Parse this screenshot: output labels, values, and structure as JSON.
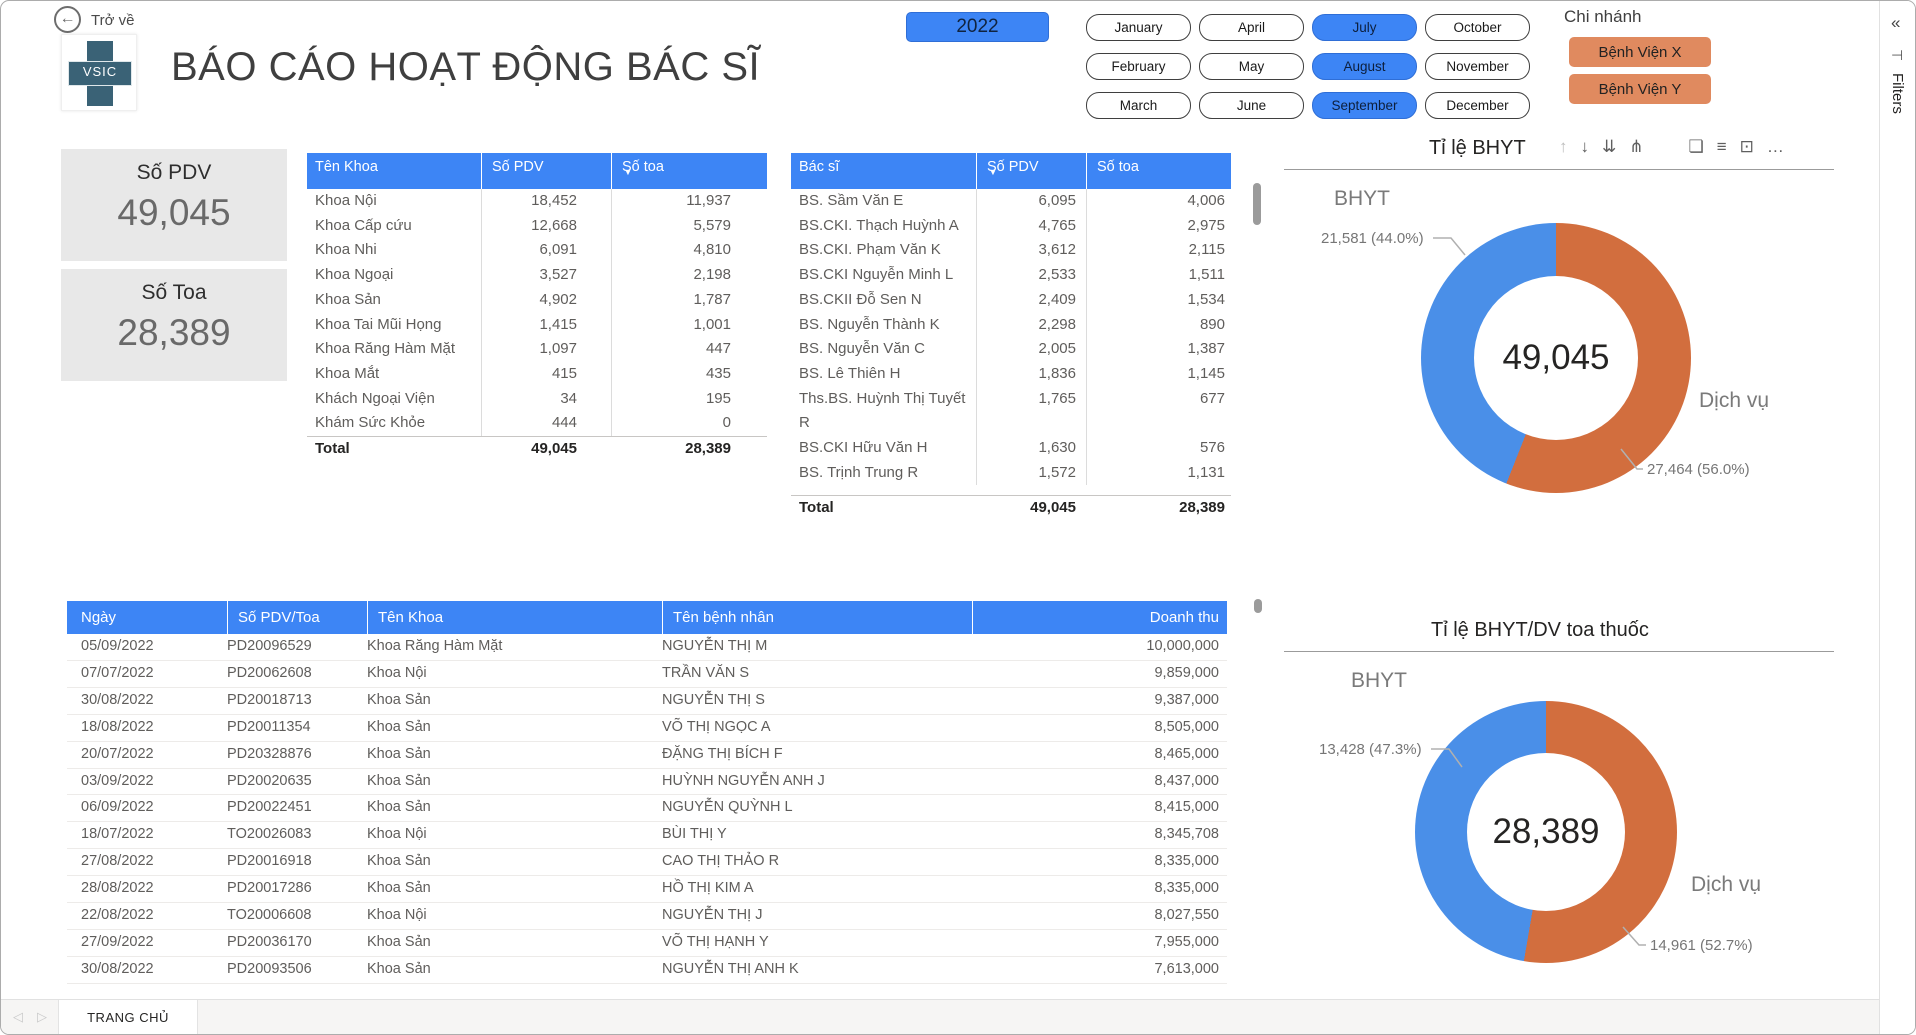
{
  "header": {
    "back_label": "Trở về",
    "logo_text": "VSIC",
    "title": "BÁO CÁO HOẠT ĐỘNG BÁC SĨ",
    "year": "2022",
    "months": [
      {
        "label": "January",
        "selected": false
      },
      {
        "label": "February",
        "selected": false
      },
      {
        "label": "March",
        "selected": false
      },
      {
        "label": "April",
        "selected": false
      },
      {
        "label": "May",
        "selected": false
      },
      {
        "label": "June",
        "selected": false
      },
      {
        "label": "July",
        "selected": true
      },
      {
        "label": "August",
        "selected": true
      },
      {
        "label": "September",
        "selected": true
      },
      {
        "label": "October",
        "selected": false
      },
      {
        "label": "November",
        "selected": false
      },
      {
        "label": "December",
        "selected": false
      }
    ],
    "branch": {
      "label": "Chi nhánh",
      "buttons": [
        "Bệnh Viện X",
        "Bệnh Viện Y"
      ]
    }
  },
  "cards": [
    {
      "label": "Số PDV",
      "value": "49,045"
    },
    {
      "label": "Số Toa",
      "value": "28,389"
    }
  ],
  "dept_table": {
    "columns": [
      "Tên Khoa",
      "Số PDV",
      "Số toa"
    ],
    "sort_column": "Số toa",
    "rows": [
      [
        "Khoa Nội",
        "18,452",
        "11,937"
      ],
      [
        "Khoa Cấp cứu",
        "12,668",
        "5,579"
      ],
      [
        "Khoa Nhi",
        "6,091",
        "4,810"
      ],
      [
        "Khoa Ngoại",
        "3,527",
        "2,198"
      ],
      [
        "Khoa Sản",
        "4,902",
        "1,787"
      ],
      [
        "Khoa Tai Mũi Họng",
        "1,415",
        "1,001"
      ],
      [
        "Khoa Răng Hàm Mặt",
        "1,097",
        "447"
      ],
      [
        "Khoa Mắt",
        "415",
        "435"
      ],
      [
        "Khách Ngoại Viện",
        "34",
        "195"
      ],
      [
        "Khám Sức Khỏe",
        "444",
        "0"
      ]
    ],
    "total": [
      "Total",
      "49,045",
      "28,389"
    ]
  },
  "doctor_table": {
    "columns": [
      "Bác sĩ",
      "Số PDV",
      "Số toa"
    ],
    "sort_column": "Số PDV",
    "rows": [
      [
        "BS. Sầm Văn E",
        "6,095",
        "4,006"
      ],
      [
        "BS.CKI. Thạch Huỳnh A",
        "4,765",
        "2,975"
      ],
      [
        "BS.CKI. Phạm Văn K",
        "3,612",
        "2,115"
      ],
      [
        "BS.CKI Nguyễn Minh L",
        "2,533",
        "1,511"
      ],
      [
        "BS.CKII Đỗ Sen N",
        "2,409",
        "1,534"
      ],
      [
        "BS. Nguyễn Thành K",
        "2,298",
        "890"
      ],
      [
        "BS. Nguyễn Văn C",
        "2,005",
        "1,387"
      ],
      [
        "BS. Lê Thiên H",
        "1,836",
        "1,145"
      ],
      [
        "Ths.BS. Huỳnh Thị Tuyết R",
        "1,765",
        "677"
      ],
      [
        "BS.CKI Hữu Văn H",
        "1,630",
        "576"
      ],
      [
        "BS. Trịnh Trung R",
        "1,572",
        "1,131"
      ]
    ],
    "total": [
      "Total",
      "49,045",
      "28,389"
    ]
  },
  "detail_table": {
    "columns": [
      "Ngày",
      "Số PDV/Toa",
      "Tên Khoa",
      "Tên bệnh nhân",
      "Doanh thu"
    ],
    "rows": [
      [
        "05/09/2022",
        "PD20096529",
        "Khoa Răng Hàm Mặt",
        "NGUYỄN THỊ M",
        "10,000,000"
      ],
      [
        "07/07/2022",
        "PD20062608",
        "Khoa Nội",
        "TRẦN VĂN S",
        "9,859,000"
      ],
      [
        "30/08/2022",
        "PD20018713",
        "Khoa Sản",
        "NGUYỄN THỊ S",
        "9,387,000"
      ],
      [
        "18/08/2022",
        "PD20011354",
        "Khoa Sản",
        "VÕ THỊ NGỌC A",
        "8,505,000"
      ],
      [
        "20/07/2022",
        "PD20328876",
        "Khoa Sản",
        "ĐẶNG THỊ BÍCH F",
        "8,465,000"
      ],
      [
        "03/09/2022",
        "PD20020635",
        "Khoa Sản",
        "HUỲNH NGUYỄN ANH J",
        "8,437,000"
      ],
      [
        "06/09/2022",
        "PD20022451",
        "Khoa Sản",
        "NGUYỄN QUỲNH L",
        "8,415,000"
      ],
      [
        "18/07/2022",
        "TO20026083",
        "Khoa Nội",
        "BÙI THỊ Y",
        "8,345,708"
      ],
      [
        "27/08/2022",
        "PD20016918",
        "Khoa Sản",
        "CAO THỊ THẢO R",
        "8,335,000"
      ],
      [
        "28/08/2022",
        "PD20017286",
        "Khoa Sản",
        "HỒ THỊ KIM A",
        "8,335,000"
      ],
      [
        "22/08/2022",
        "TO20006608",
        "Khoa Nội",
        "NGUYỄN THỊ J",
        "8,027,550"
      ],
      [
        "27/09/2022",
        "PD20036170",
        "Khoa Sản",
        "VÕ THỊ HẠNH Y",
        "7,955,000"
      ],
      [
        "30/08/2022",
        "PD20093506",
        "Khoa Sản",
        "NGUYỄN THỊ ANH K",
        "7,613,000"
      ]
    ]
  },
  "chart_data": [
    {
      "type": "pie",
      "title": "Tỉ lệ BHYT",
      "center_label": "49,045",
      "legend_position": "callouts",
      "slices": [
        {
          "label": "Dịch vụ",
          "value": 27464,
          "pct": "56.0%",
          "callout": "27,464 (56.0%)",
          "color": "#D26E3E"
        },
        {
          "label": "BHYT",
          "value": 21581,
          "pct": "44.0%",
          "callout": "21,581 (44.0%)",
          "color": "#4A8FE8"
        }
      ]
    },
    {
      "type": "pie",
      "title": "Tỉ lệ BHYT/DV toa thuốc",
      "center_label": "28,389",
      "legend_position": "callouts",
      "slices": [
        {
          "label": "Dịch vụ",
          "value": 14961,
          "pct": "52.7%",
          "callout": "14,961 (52.7%)",
          "color": "#D26E3E"
        },
        {
          "label": "BHYT",
          "value": 13428,
          "pct": "47.3%",
          "callout": "13,428 (47.3%)",
          "color": "#4A8FE8"
        }
      ]
    }
  ],
  "footer": {
    "tab": "TRANG CHỦ"
  },
  "filters_panel": {
    "label": "Filters"
  },
  "icons": {
    "back": "←",
    "sort_desc": "▼",
    "drill_up": "↑",
    "drill_down": "↓",
    "next_level": "⇊",
    "expand_all": "⋔",
    "copy": "❏",
    "filter": "≡",
    "focus": "⊡",
    "more": "…",
    "prev": "◁",
    "next": "▷",
    "collapse": "«",
    "expand_pane": "⊣"
  },
  "colors": {
    "accent_blue": "#3D85F5",
    "branch_orange": "#E08A5F",
    "donut_blue": "#4A8FE8",
    "donut_orange": "#D26E3E",
    "card_bg": "#E8E8E8",
    "text_gray": "#5F5D5B"
  }
}
